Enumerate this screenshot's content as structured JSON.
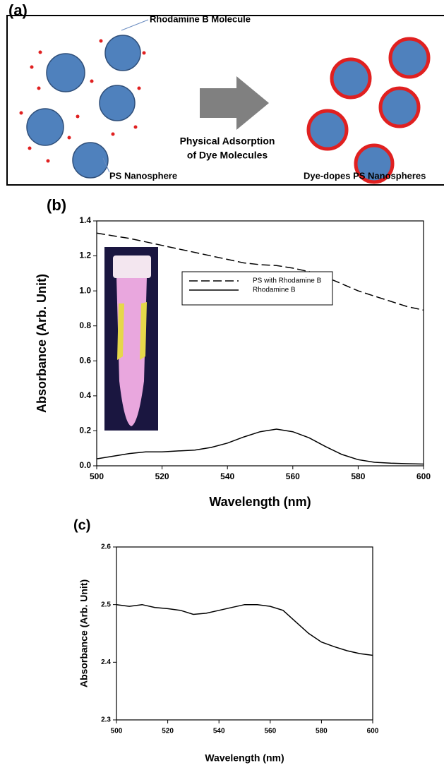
{
  "diagram": {
    "label": "(a)",
    "molecule_label": "Rhodamine B Molecule",
    "sphere_label": "PS Nanosphere",
    "process_label": [
      "Physical Adsorption",
      "of Dye Molecules"
    ],
    "product_label": "Dye-dopes PS Nanospheres"
  },
  "chart_data": [
    {
      "type": "line",
      "label": "(b)",
      "xlabel": "Wavelength (nm)",
      "ylabel": "Absorbance (Arb. Unit)",
      "x": [
        500,
        505,
        510,
        515,
        520,
        525,
        530,
        535,
        540,
        545,
        550,
        555,
        560,
        565,
        570,
        575,
        580,
        585,
        590,
        595,
        600
      ],
      "series": [
        {
          "name": "PS with Rhodamine B",
          "color": "#000000",
          "dashed": true,
          "values": [
            1.33,
            1.315,
            1.3,
            1.28,
            1.26,
            1.24,
            1.22,
            1.2,
            1.18,
            1.16,
            1.15,
            1.145,
            1.13,
            1.11,
            1.08,
            1.04,
            1.0,
            0.97,
            0.94,
            0.91,
            0.89
          ]
        },
        {
          "name": "Rhodamine B",
          "color": "#000000",
          "dashed": false,
          "values": [
            0.04,
            0.055,
            0.07,
            0.08,
            0.08,
            0.085,
            0.09,
            0.105,
            0.13,
            0.165,
            0.195,
            0.21,
            0.195,
            0.16,
            0.11,
            0.065,
            0.035,
            0.02,
            0.015,
            0.012,
            0.01
          ]
        }
      ],
      "xlim": [
        500,
        600
      ],
      "xticks": [
        500,
        520,
        540,
        560,
        580,
        600
      ],
      "ylim": [
        0,
        1.4
      ],
      "yticks": [
        {
          "value": 0,
          "label": "0.0"
        },
        0.2,
        0.4,
        0.6,
        0.8,
        {
          "value": 1,
          "label": "1.0"
        },
        1.2,
        1.4
      ]
    },
    {
      "type": "line",
      "label": "(c)",
      "xlabel": "Wavelength (nm)",
      "ylabel": "Absorbance (Arb. Unit)",
      "x": [
        500,
        505,
        510,
        515,
        520,
        525,
        530,
        535,
        540,
        545,
        550,
        555,
        560,
        565,
        570,
        575,
        580,
        585,
        590,
        595,
        600
      ],
      "series": [
        {
          "color": "#000000",
          "dashed": false,
          "values": [
            2.5,
            2.497,
            2.5,
            2.495,
            2.493,
            2.49,
            2.483,
            2.485,
            2.49,
            2.495,
            2.5,
            2.5,
            2.497,
            2.49,
            2.47,
            2.45,
            2.435,
            2.427,
            2.42,
            2.415,
            2.412
          ]
        }
      ],
      "xlim": [
        500,
        600
      ],
      "xticks": [
        500,
        520,
        540,
        560,
        580,
        600
      ],
      "ylim": [
        2.3,
        2.6
      ],
      "yticks": [
        2.3,
        2.4,
        2.5,
        2.6
      ]
    }
  ]
}
